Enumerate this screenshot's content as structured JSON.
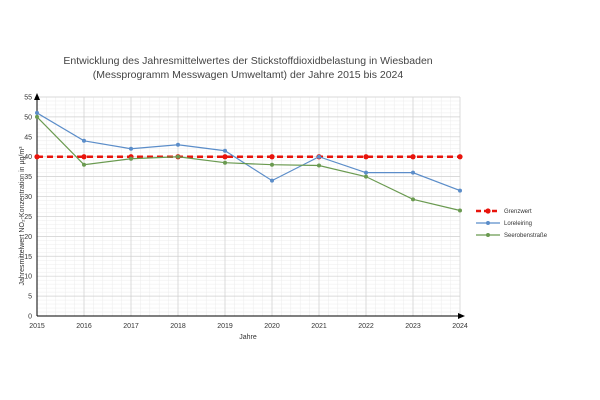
{
  "chart_data": {
    "type": "line",
    "title_lines": [
      "Entwicklung des Jahresmittelwertes der Stickstoffdioxidbelastung in Wiesbaden",
      "(Messprogramm Messwagen Umweltamt) der Jahre 2015 bis 2024"
    ],
    "xlabel": "Jahre",
    "ylabel": "Jahresmittelwert NO₂-Konzentration in µg/m³",
    "x": [
      2015,
      2016,
      2017,
      2018,
      2019,
      2020,
      2021,
      2022,
      2023,
      2024
    ],
    "ylim": [
      0,
      55
    ],
    "yticks": [
      0,
      5,
      10,
      15,
      20,
      25,
      30,
      35,
      40,
      45,
      50,
      55
    ],
    "grid": true,
    "legend_position": "right",
    "series": [
      {
        "name": "Grenzwert",
        "color": "#e8140c",
        "style": "dashed",
        "values": [
          40,
          40,
          40,
          40,
          40,
          40,
          40,
          40,
          40,
          40
        ]
      },
      {
        "name": "Loreleiring",
        "color": "#5b8dc9",
        "style": "solid",
        "values": [
          51,
          44,
          42,
          43,
          41.5,
          34,
          40,
          36,
          36,
          31.5
        ]
      },
      {
        "name": "Seerobenstraße",
        "color": "#6a9a50",
        "style": "solid",
        "values": [
          50,
          38,
          39.5,
          40,
          38.5,
          38,
          37.8,
          35,
          29.3,
          26.5
        ]
      }
    ]
  }
}
